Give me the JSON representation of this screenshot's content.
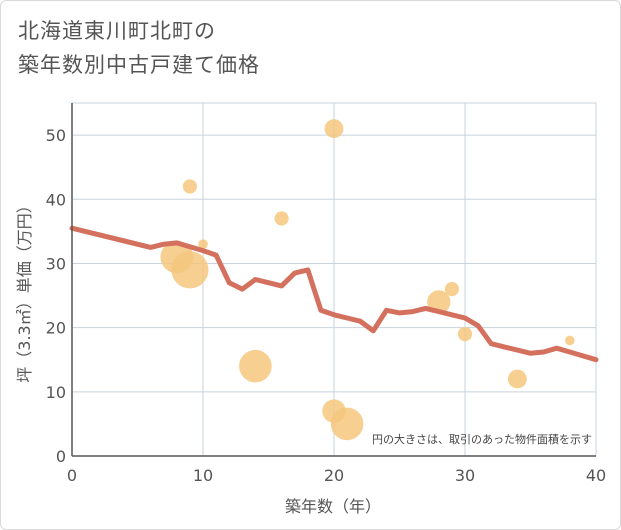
{
  "chart_data": {
    "type": "scatter",
    "title_lines": [
      "北海道東川町北町の",
      "築年数別中古戸建て価格"
    ],
    "xlabel": "築年数（年）",
    "ylabel": "坪（3.3㎡）単価（万円）",
    "xlim": [
      0,
      40
    ],
    "ylim": [
      0,
      55
    ],
    "x_ticks": [
      0,
      10,
      20,
      30,
      40
    ],
    "y_ticks": [
      0,
      10,
      20,
      30,
      40,
      50
    ],
    "grid": true,
    "note": "円の大きさは、取引のあった物件面積を示す",
    "colors": {
      "bubble": "#f5c77e",
      "line": "#d4705e",
      "grid": "#c8d3de",
      "axis": "#555555"
    },
    "bubbles": [
      {
        "x": 20,
        "y": 51,
        "size": 3
      },
      {
        "x": 9,
        "y": 42,
        "size": 2
      },
      {
        "x": 16,
        "y": 37,
        "size": 2
      },
      {
        "x": 10,
        "y": 33,
        "size": 1
      },
      {
        "x": 8,
        "y": 31,
        "size": 6
      },
      {
        "x": 9,
        "y": 29,
        "size": 7
      },
      {
        "x": 29,
        "y": 26,
        "size": 2
      },
      {
        "x": 28,
        "y": 24,
        "size": 4
      },
      {
        "x": 30,
        "y": 19,
        "size": 2
      },
      {
        "x": 14,
        "y": 14,
        "size": 6
      },
      {
        "x": 34,
        "y": 12,
        "size": 3
      },
      {
        "x": 38,
        "y": 18,
        "size": 1
      },
      {
        "x": 20,
        "y": 7,
        "size": 4
      },
      {
        "x": 21,
        "y": 5,
        "size": 6
      }
    ],
    "trend": {
      "x": [
        0,
        6,
        7,
        8,
        10,
        11,
        12,
        13,
        14,
        15,
        16,
        17,
        18,
        19,
        20,
        21,
        22,
        23,
        24,
        25,
        26,
        27,
        28,
        29,
        30,
        31,
        32,
        33,
        34,
        35,
        36,
        37,
        38,
        39,
        40
      ],
      "y": [
        35.5,
        32.5,
        33,
        33.2,
        32,
        31.3,
        27,
        26,
        27.5,
        27,
        26.5,
        28.5,
        29,
        22.7,
        22,
        21.5,
        21,
        19.5,
        22.7,
        22.3,
        22.5,
        23,
        22.5,
        22,
        21.5,
        20.3,
        17.5,
        17,
        16.5,
        16,
        16.2,
        16.8,
        16.2,
        15.6,
        15
      ]
    }
  }
}
